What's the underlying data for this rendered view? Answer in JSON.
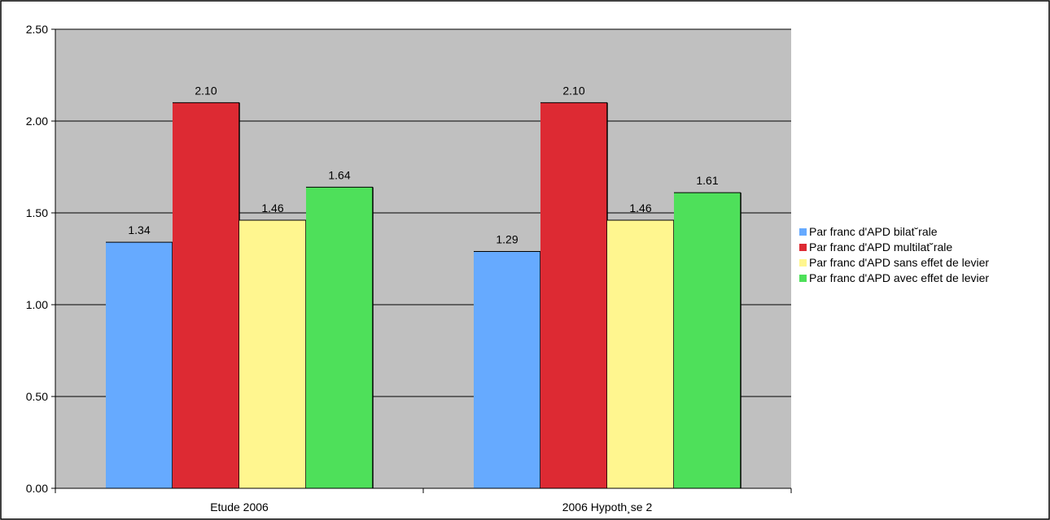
{
  "chart_data": {
    "type": "bar",
    "title": "",
    "xlabel": "",
    "ylabel": "",
    "categories": [
      "Etude 2006",
      "2006 Hypoth¸se 2"
    ],
    "series": [
      {
        "name": "Par franc d'APD bilat˘rale",
        "values": [
          1.34,
          1.29
        ],
        "color": "#66aaff"
      },
      {
        "name": "Par franc d'APD multilat˘rale",
        "values": [
          2.1,
          2.1
        ],
        "color": "#dd2a33"
      },
      {
        "name": "Par franc d'APD sans effet de levier",
        "values": [
          1.46,
          1.46
        ],
        "color": "#fff68f"
      },
      {
        "name": "Par franc d'APD avec effet de levier",
        "values": [
          1.64,
          1.61
        ],
        "color": "#4ee05a"
      }
    ],
    "ylim": [
      0,
      2.5
    ],
    "yticks": [
      "0.00",
      "0.50",
      "1.00",
      "1.50",
      "2.00",
      "2.50"
    ],
    "ytick_values": [
      0,
      0.5,
      1.0,
      1.5,
      2.0,
      2.5
    ],
    "grid": true,
    "legend_position": "right",
    "plot_background": "#c0c0c0"
  }
}
